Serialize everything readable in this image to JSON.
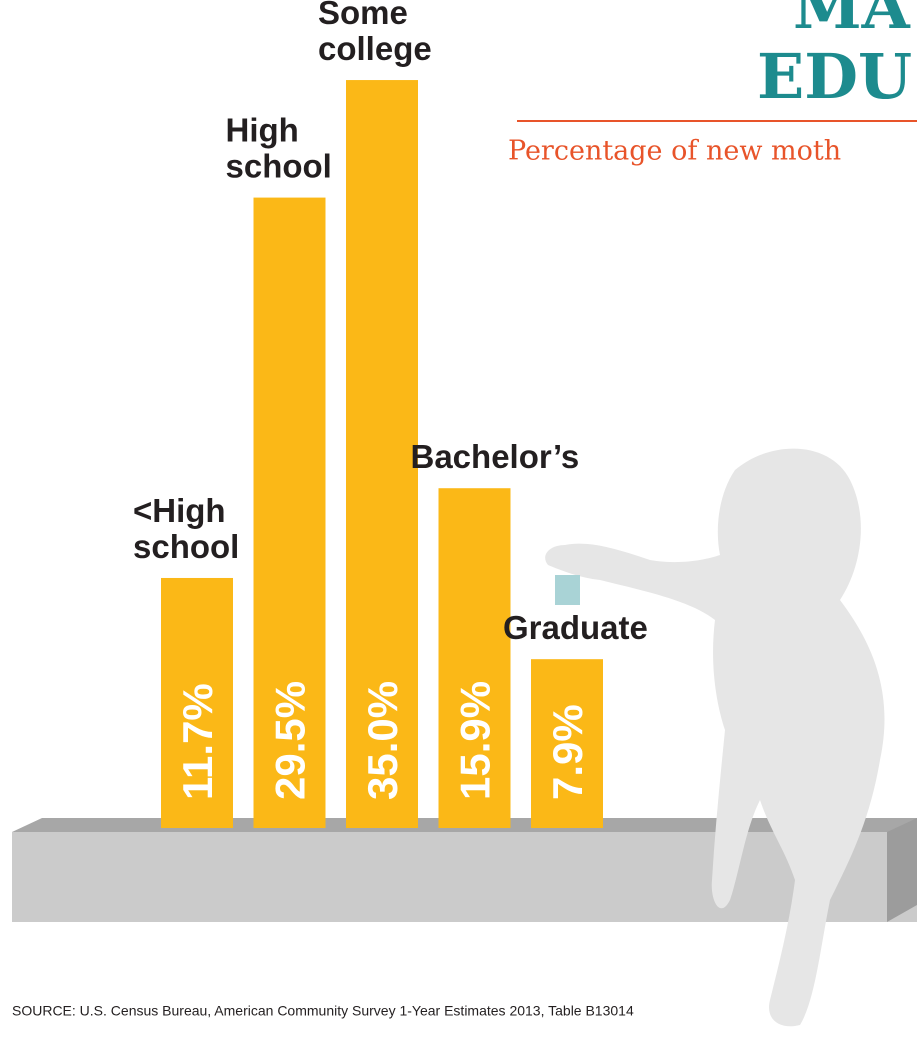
{
  "chart_data": {
    "type": "bar",
    "title": [
      "MA",
      "EDU"
    ],
    "subtitle": "Percentage of new moth",
    "categories": [
      "<High school",
      "High school",
      "Some college",
      "Bachelor’s",
      "Graduate"
    ],
    "values": [
      11.7,
      29.5,
      35.0,
      15.9,
      7.9
    ],
    "value_labels": [
      "11.7%",
      "29.5%",
      "35.0%",
      "15.9%",
      "7.9%"
    ],
    "color": "#fbb817",
    "source": "SOURCE: U.S. Census Bureau, American Community Survey 1-Year Estimates 2013, Table B13014"
  }
}
